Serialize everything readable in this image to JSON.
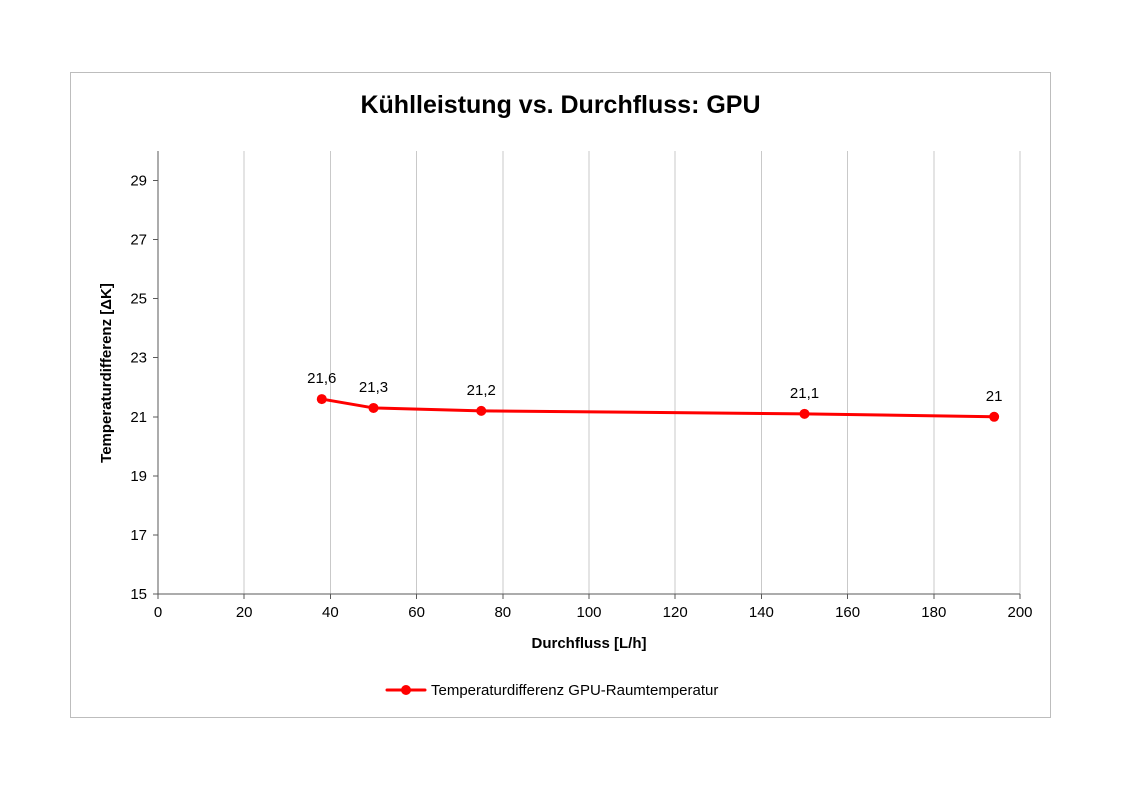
{
  "page": {
    "background": "#ffffff"
  },
  "style": {
    "series_color": "#ff0000",
    "gridline_color": "#c9c9c9",
    "axis_color": "#595959",
    "text_color": "#000000",
    "chart_border_color": "#bdbdbd"
  },
  "chart_data": {
    "type": "line",
    "title": "Kühlleistung vs. Durchfluss: GPU",
    "xlabel": "Durchfluss [L/h]",
    "ylabel": "Temperaturdifferenz [ΔK]",
    "xlim": [
      0,
      200
    ],
    "ylim": [
      15,
      30
    ],
    "xticks": [
      0,
      20,
      40,
      60,
      80,
      100,
      120,
      140,
      160,
      180,
      200
    ],
    "yticks": [
      15,
      17,
      19,
      21,
      23,
      25,
      27,
      29
    ],
    "grid": "vertical-major",
    "legend_position": "bottom-center",
    "series": [
      {
        "name": "Temperaturdifferenz GPU-Raumtemperatur",
        "color": "#ff0000",
        "marker": "circle",
        "x": [
          38,
          50,
          75,
          150,
          194
        ],
        "y": [
          21.6,
          21.3,
          21.2,
          21.1,
          21
        ],
        "point_labels": [
          "21,6",
          "21,3",
          "21,2",
          "21,1",
          "21"
        ]
      }
    ]
  }
}
